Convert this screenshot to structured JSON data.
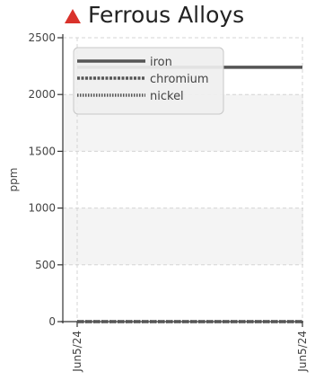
{
  "header": {
    "title": "Ferrous Alloys",
    "status_icon": "warning-triangle-icon",
    "status_color": "#d9322b"
  },
  "chart_data": {
    "type": "line",
    "title": "Ferrous Alloys",
    "xlabel": "",
    "ylabel": "ppm",
    "ylim": [
      0,
      2500
    ],
    "yticks": [
      0,
      500,
      1000,
      1500,
      2000,
      2500
    ],
    "xticks": [
      "Jun5/24",
      "Jun5/24"
    ],
    "grid": true,
    "legend_position": "top-left",
    "series": [
      {
        "name": "iron",
        "style": "solid",
        "color": "#555555",
        "values": [
          2240,
          2240
        ]
      },
      {
        "name": "chromium",
        "style": "dashed",
        "color": "#555555",
        "values": [
          0,
          0
        ]
      },
      {
        "name": "nickel",
        "style": "dotted",
        "color": "#555555",
        "values": [
          0,
          0
        ]
      }
    ]
  }
}
